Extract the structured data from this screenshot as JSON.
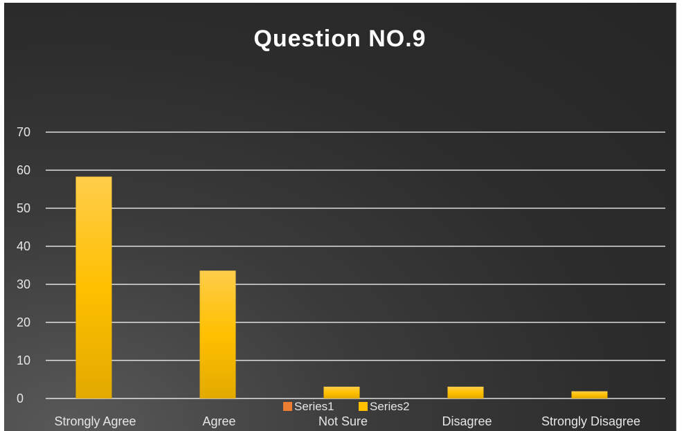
{
  "chart_data": {
    "type": "bar",
    "title": "Question NO.9",
    "categories": [
      "Strongly Agree",
      "Agree",
      "Not Sure",
      "Disagree",
      "Strongly Disagree"
    ],
    "series": [
      {
        "name": "Series1",
        "values": [
          0,
          0,
          0,
          0,
          0
        ],
        "color": "#ed7d31"
      },
      {
        "name": "Series2",
        "values": [
          58.3,
          33.6,
          3.1,
          3.1,
          1.9
        ],
        "color": "#ffc000"
      }
    ],
    "ylim": [
      0,
      70
    ],
    "yticks": [
      0,
      10,
      20,
      30,
      40,
      50,
      60,
      70
    ],
    "grid": true,
    "legend_position": "bottom"
  },
  "colors": {
    "background": "#2e2e2e",
    "gridline": "#ffffff",
    "text": "#e6e6e6"
  }
}
